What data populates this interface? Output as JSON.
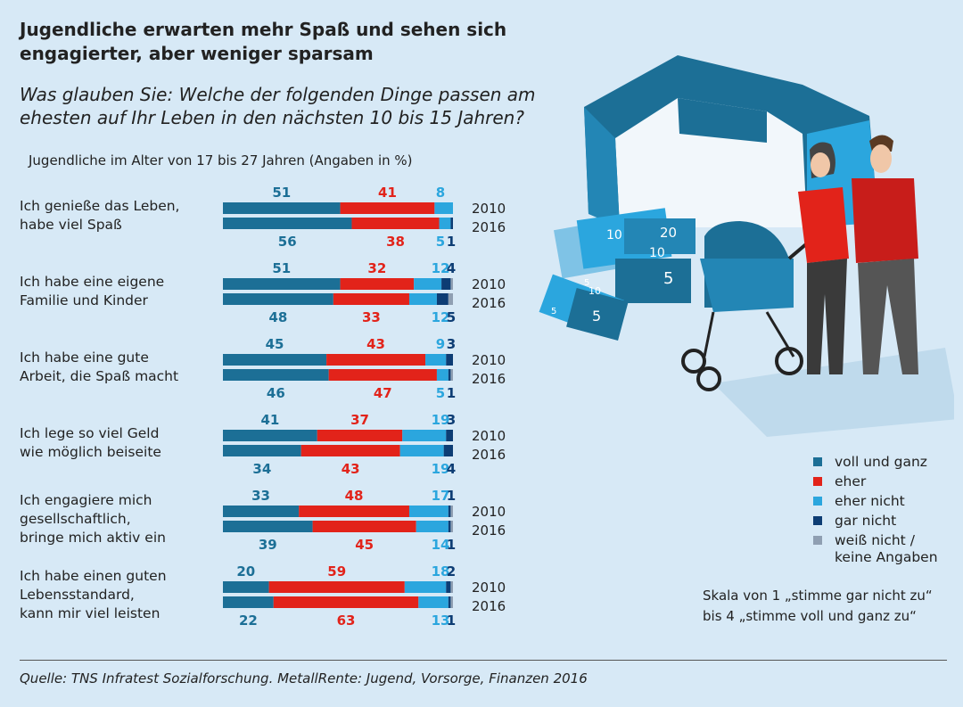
{
  "title_line1": "Jugendliche erwarten mehr Spaß und sehen sich",
  "title_line2": "engagierter, aber weniger sparsam",
  "question_line1": "Was glauben Sie: Welche der folgenden Dinge passen am",
  "question_line2": "ehesten auf Ihr Leben in den nächsten 10 bis 15 Jahren?",
  "subtitle": "Jugendliche im Alter von 17 bis 27 Jahren (Angaben in %)",
  "colors": {
    "voll": "#1c6f96",
    "eher": "#e2231a",
    "ehernicht": "#2ba6de",
    "garnicht": "#0d3d74",
    "weiss": "#8f9fb2"
  },
  "legend": {
    "voll": "voll und ganz",
    "eher": "eher",
    "ehernicht": "eher nicht",
    "garnicht": "gar nicht",
    "weiss_line1": "weiß nicht /",
    "weiss_line2": "keine Angaben"
  },
  "scale_note_line1": "Skala von 1 „stimme gar nicht zu“",
  "scale_note_line2": "bis 4 „stimme voll und ganz zu“",
  "source": "Quelle: TNS Infratest Sozialforschung. MetallRente: Jugend, Vorsorge, Finanzen 2016",
  "years": [
    "2010",
    "2016"
  ],
  "illustration_banknotes": [
    "10",
    "20",
    "10",
    "5",
    "5",
    "10",
    "5",
    "5"
  ],
  "chart_data": {
    "type": "bar",
    "orientation": "horizontal",
    "stacked": true,
    "unit": "%",
    "categories": [
      [
        "Ich genieße das Leben,",
        "habe viel Spaß"
      ],
      [
        "Ich habe eine eigene",
        "Familie und Kinder"
      ],
      [
        "Ich habe eine gute",
        "Arbeit, die Spaß macht"
      ],
      [
        "Ich lege so viel Geld",
        "wie möglich beiseite"
      ],
      [
        "Ich engagiere mich",
        "gesellschaftlich,",
        "bringe mich aktiv ein"
      ],
      [
        "Ich habe einen guten",
        "Lebensstandard,",
        "kann mir viel leisten"
      ]
    ],
    "series_keys": [
      "voll",
      "eher",
      "ehernicht",
      "garnicht",
      "weiss"
    ],
    "values": [
      {
        "2010": [
          51,
          41,
          8,
          0,
          0
        ],
        "2016": [
          56,
          38,
          5,
          1,
          0
        ]
      },
      {
        "2010": [
          51,
          32,
          12,
          4,
          1
        ],
        "2016": [
          48,
          33,
          12,
          5,
          2
        ]
      },
      {
        "2010": [
          45,
          43,
          9,
          3,
          0
        ],
        "2016": [
          46,
          47,
          5,
          1,
          1
        ]
      },
      {
        "2010": [
          41,
          37,
          19,
          3,
          0
        ],
        "2016": [
          34,
          43,
          19,
          4,
          0
        ]
      },
      {
        "2010": [
          33,
          48,
          17,
          1,
          1
        ],
        "2016": [
          39,
          45,
          14,
          1,
          1
        ]
      },
      {
        "2010": [
          20,
          59,
          18,
          2,
          1
        ],
        "2016": [
          22,
          63,
          13,
          1,
          1
        ]
      }
    ],
    "labels": [
      {
        "2010": [
          "51",
          "41",
          "8",
          ""
        ],
        "2016": [
          "56",
          "38",
          "5",
          "1"
        ]
      },
      {
        "2010": [
          "51",
          "32",
          "12",
          "4"
        ],
        "2016": [
          "48",
          "33",
          "12",
          "5"
        ]
      },
      {
        "2010": [
          "45",
          "43",
          "9",
          "3"
        ],
        "2016": [
          "46",
          "47",
          "5",
          "1"
        ]
      },
      {
        "2010": [
          "41",
          "37",
          "19",
          "3"
        ],
        "2016": [
          "34",
          "43",
          "19",
          "4"
        ]
      },
      {
        "2010": [
          "33",
          "48",
          "17",
          "1"
        ],
        "2016": [
          "39",
          "45",
          "14",
          "1"
        ]
      },
      {
        "2010": [
          "20",
          "59",
          "18",
          "2"
        ],
        "2016": [
          "22",
          "63",
          "13",
          "1"
        ]
      }
    ]
  }
}
